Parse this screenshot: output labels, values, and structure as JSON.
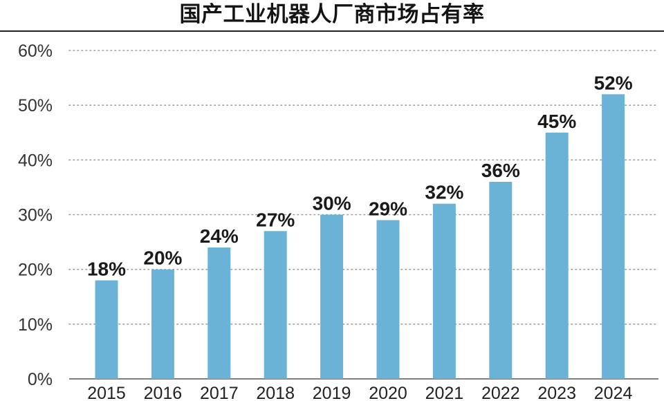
{
  "chart_data": {
    "type": "bar",
    "title": "国产工业机器人厂商市场占有率",
    "xlabel": "",
    "ylabel": "",
    "categories": [
      "2015",
      "2016",
      "2017",
      "2018",
      "2019",
      "2020",
      "2021",
      "2022",
      "2023",
      "2024"
    ],
    "values": [
      18,
      20,
      24,
      27,
      30,
      29,
      32,
      36,
      45,
      52
    ],
    "data_labels": [
      "18%",
      "20%",
      "24%",
      "27%",
      "30%",
      "29%",
      "32%",
      "36%",
      "45%",
      "52%"
    ],
    "ylim": [
      0,
      60
    ],
    "y_ticks": [
      0,
      10,
      20,
      30,
      40,
      50,
      60
    ],
    "y_tick_labels": [
      "0%",
      "10%",
      "20%",
      "30%",
      "40%",
      "50%",
      "60%"
    ],
    "grid": true,
    "legend": "none",
    "bar_color": "#6bb3d6",
    "grid_color": "#9a9a9a"
  }
}
